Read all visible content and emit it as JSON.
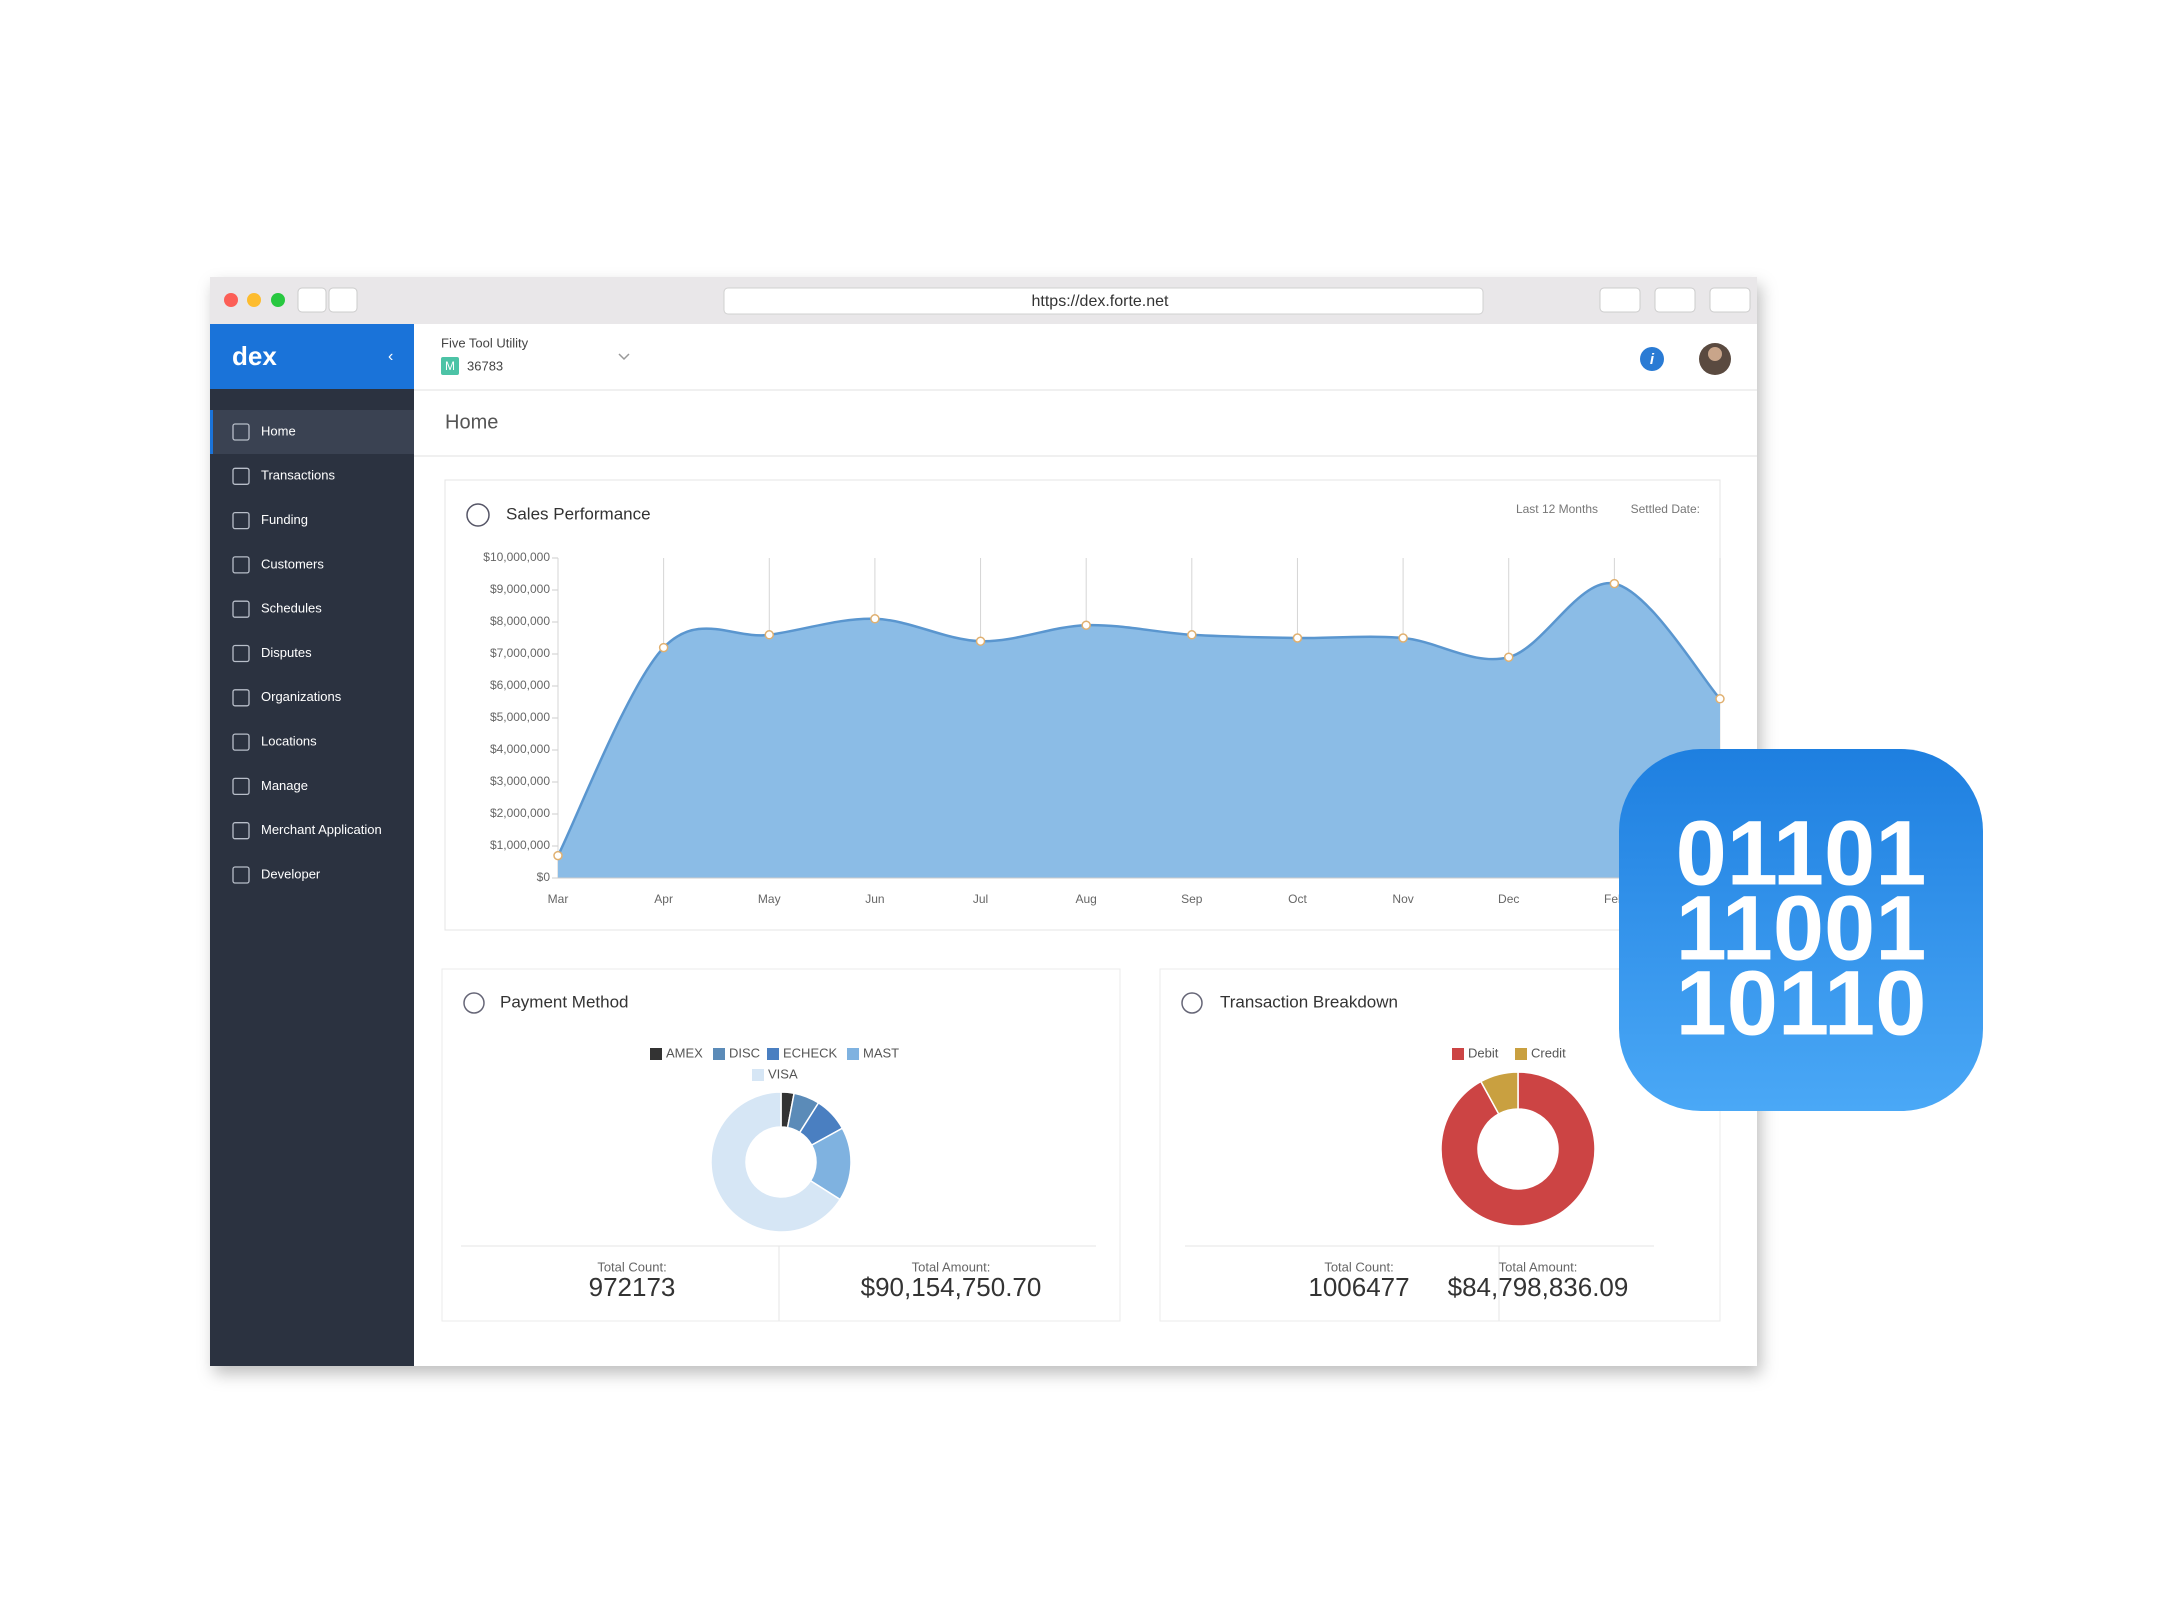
{
  "browser": {
    "url": "https://dex.forte.net"
  },
  "sidebar": {
    "logo": "dex",
    "items": [
      "Home",
      "Transactions",
      "Funding",
      "Customers",
      "Schedules",
      "Disputes",
      "Organizations",
      "Locations",
      "Manage",
      "Merchant Application",
      "Developer"
    ]
  },
  "header": {
    "merchant": "Five Tool Utility",
    "badge": "M",
    "merchant_id": "36783",
    "page_title": "Home"
  },
  "chart_data": [
    {
      "type": "area",
      "title": "Sales Performance",
      "filter": "Last 12 Months",
      "date_label": "Settled Date:",
      "categories": [
        "Mar",
        "Apr",
        "May",
        "Jun",
        "Jul",
        "Aug",
        "Sep",
        "Oct",
        "Nov",
        "Dec",
        "Feb",
        null
      ],
      "values": [
        700000,
        7200000,
        7600000,
        8100000,
        7400000,
        7900000,
        7600000,
        7500000,
        7500000,
        6900000,
        9200000,
        5600000
      ],
      "color": "#8bbce6",
      "line_color": "#5a96cf",
      "ylim": [
        0,
        10000000
      ],
      "yticks": [
        {
          "value": 0,
          "label": "$0"
        },
        {
          "value": 1000000,
          "label": "$1,000,000"
        },
        {
          "value": 2000000,
          "label": "$2,000,000"
        },
        {
          "value": 3000000,
          "label": "$3,000,000"
        },
        {
          "value": 4000000,
          "label": "$4,000,000"
        },
        {
          "value": 5000000,
          "label": "$5,000,000"
        },
        {
          "value": 6000000,
          "label": "$6,000,000"
        },
        {
          "value": 7000000,
          "label": "$7,000,000"
        },
        {
          "value": 8000000,
          "label": "$8,000,000"
        },
        {
          "value": 9000000,
          "label": "$9,000,000"
        },
        {
          "value": 10000000,
          "label": "$10,000,000"
        }
      ]
    },
    {
      "type": "donut",
      "title": "Payment Method",
      "categories": [
        "AMEX",
        "DISC",
        "ECHECK",
        "MAST",
        "VISA"
      ],
      "values": [
        3,
        6,
        8,
        17,
        66
      ],
      "colors": [
        "#333333",
        "#5b8bb8",
        "#4a7fc1",
        "#7fb2e0",
        "#d6e6f5"
      ],
      "totals": {
        "count_label": "Total Count:",
        "count": "972173",
        "amount_label": "Total Amount:",
        "amount": "$90,154,750.70"
      }
    },
    {
      "type": "donut",
      "title": "Transaction Breakdown",
      "categories": [
        "Debit",
        "Credit"
      ],
      "values": [
        92,
        8
      ],
      "colors": [
        "#cc4444",
        "#c9a040"
      ],
      "totals": {
        "count_label": "Total Count:",
        "count": "1006477",
        "amount_label": "Total Amount:",
        "amount": "$84,798,836.09"
      }
    }
  ],
  "badge": {
    "lines": [
      "01101",
      "11001",
      "10110"
    ]
  }
}
